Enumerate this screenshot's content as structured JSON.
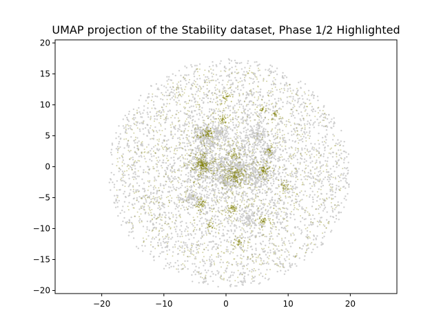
{
  "chart_data": {
    "type": "scatter",
    "title": "UMAP projection of the Stability dataset, Phase 1/2 Highlighted",
    "xlabel": "",
    "ylabel": "",
    "xlim": [
      -27.5,
      27.5
    ],
    "ylim": [
      -20.5,
      20.5
    ],
    "xticks": [
      -20,
      -10,
      0,
      10,
      20
    ],
    "yticks": [
      -20,
      -15,
      -10,
      -5,
      0,
      5,
      10,
      15,
      20
    ],
    "grid": false,
    "legend": "none",
    "series": [
      {
        "role": "background",
        "color": "#c8c8c8",
        "distribution": {
          "center": [
            0.5,
            -1.0
          ],
          "radius": [
            19.5,
            18.5
          ],
          "count": 3200
        }
      },
      {
        "role": "highlighted",
        "color": "#808000",
        "distribution": {
          "center": [
            0.5,
            -1.0
          ],
          "radius": [
            18.5,
            17.5
          ],
          "count": 1400
        }
      }
    ],
    "background_clusters": [
      {
        "x": -3.5,
        "y": 5.0,
        "spread": 1.6,
        "n": 160
      },
      {
        "x": -3.5,
        "y": 0.5,
        "spread": 2.2,
        "n": 260
      },
      {
        "x": 2.0,
        "y": 0.0,
        "spread": 2.5,
        "n": 300
      },
      {
        "x": 5.0,
        "y": 5.0,
        "spread": 1.3,
        "n": 110
      },
      {
        "x": -1.0,
        "y": 5.5,
        "spread": 1.0,
        "n": 80
      },
      {
        "x": 5.5,
        "y": -1.5,
        "spread": 1.5,
        "n": 120
      },
      {
        "x": 3.5,
        "y": -8.0,
        "spread": 1.4,
        "n": 90
      },
      {
        "x": -5.5,
        "y": -5.0,
        "spread": 1.0,
        "n": 70
      },
      {
        "x": 0.0,
        "y": -2.5,
        "spread": 1.2,
        "n": 90
      },
      {
        "x": 7.0,
        "y": 2.5,
        "spread": 0.9,
        "n": 60
      }
    ],
    "highlight_clusters": [
      {
        "x": -3.8,
        "y": 0.3,
        "spread": 1.3,
        "n": 150
      },
      {
        "x": -3.0,
        "y": 5.3,
        "spread": 0.9,
        "n": 60
      },
      {
        "x": 1.5,
        "y": -1.5,
        "spread": 1.2,
        "n": 110
      },
      {
        "x": 6.0,
        "y": -0.5,
        "spread": 0.9,
        "n": 60
      },
      {
        "x": -4.0,
        "y": -6.0,
        "spread": 0.8,
        "n": 45
      },
      {
        "x": 1.0,
        "y": -6.8,
        "spread": 0.6,
        "n": 40
      },
      {
        "x": 0.0,
        "y": 11.3,
        "spread": 0.5,
        "n": 30
      },
      {
        "x": -0.5,
        "y": 7.8,
        "spread": 0.6,
        "n": 35
      },
      {
        "x": 6.0,
        "y": -8.8,
        "spread": 0.6,
        "n": 35
      },
      {
        "x": 2.0,
        "y": -12.3,
        "spread": 0.6,
        "n": 30
      },
      {
        "x": 9.5,
        "y": -3.2,
        "spread": 0.5,
        "n": 25
      },
      {
        "x": 7.0,
        "y": 2.5,
        "spread": 0.5,
        "n": 20
      },
      {
        "x": 5.8,
        "y": 9.2,
        "spread": 0.5,
        "n": 20
      },
      {
        "x": 7.8,
        "y": 8.5,
        "spread": 0.5,
        "n": 20
      },
      {
        "x": -2.5,
        "y": -9.5,
        "spread": 0.5,
        "n": 18
      },
      {
        "x": 1.3,
        "y": 2.2,
        "spread": 0.6,
        "n": 30
      }
    ]
  }
}
